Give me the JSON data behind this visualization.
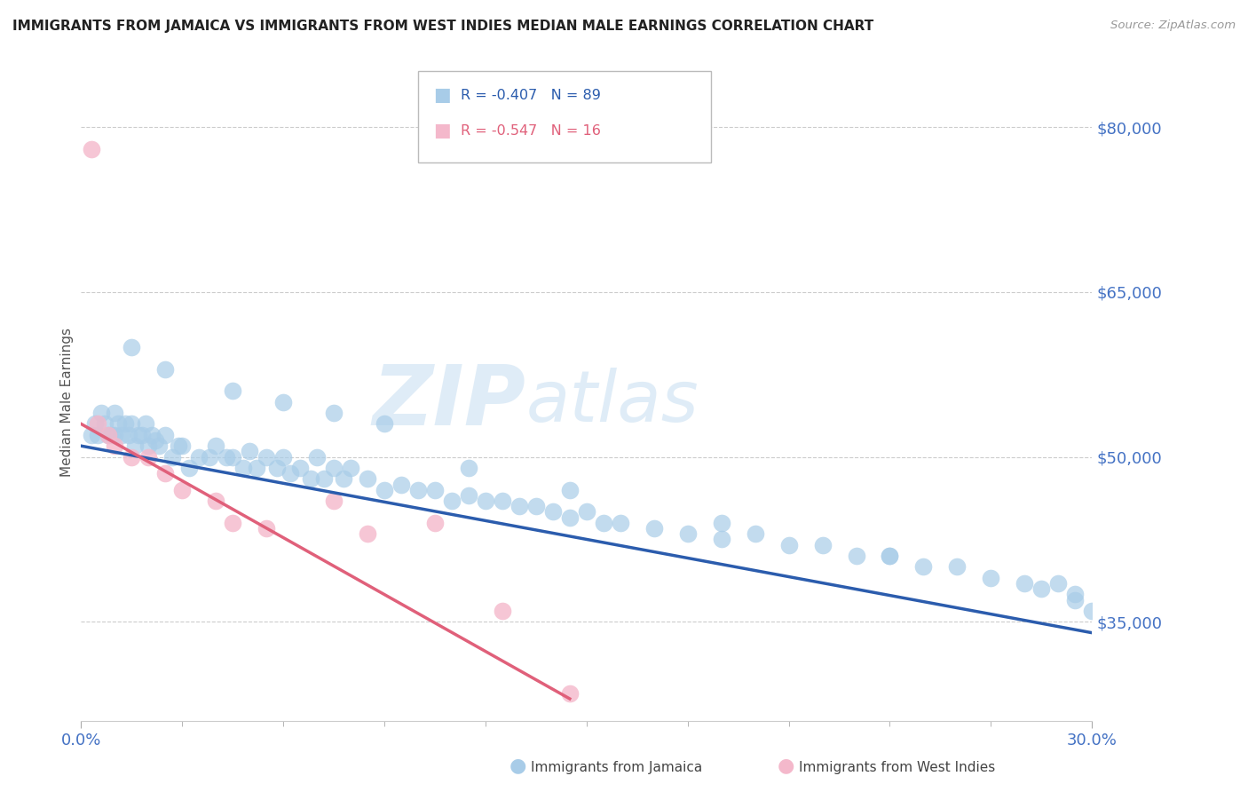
{
  "title": "IMMIGRANTS FROM JAMAICA VS IMMIGRANTS FROM WEST INDIES MEDIAN MALE EARNINGS CORRELATION CHART",
  "source": "Source: ZipAtlas.com",
  "ylabel": "Median Male Earnings",
  "yticks": [
    35000,
    50000,
    65000,
    80000
  ],
  "ytick_labels": [
    "$35,000",
    "$50,000",
    "$65,000",
    "$80,000"
  ],
  "xmin": 0.0,
  "xmax": 30.0,
  "ymin": 26000,
  "ymax": 84000,
  "blue_R": -0.407,
  "blue_N": 89,
  "pink_R": -0.547,
  "pink_N": 16,
  "legend1_label": "Immigrants from Jamaica",
  "legend2_label": "Immigrants from West Indies",
  "blue_color": "#a8cce8",
  "pink_color": "#f4b8cb",
  "blue_line_color": "#2b5cad",
  "pink_line_color": "#e0607a",
  "title_color": "#222222",
  "axis_label_color": "#4472c4",
  "watermark_zip": "ZIP",
  "watermark_atlas": "atlas",
  "blue_line_x0": 0.0,
  "blue_line_y0": 51000,
  "blue_line_x1": 30.0,
  "blue_line_y1": 34000,
  "pink_line_x0": 0.0,
  "pink_line_y0": 53000,
  "pink_line_x1": 14.5,
  "pink_line_y1": 28000,
  "blue_x": [
    0.3,
    0.4,
    0.5,
    0.6,
    0.7,
    0.8,
    0.9,
    1.0,
    1.0,
    1.1,
    1.2,
    1.3,
    1.4,
    1.5,
    1.6,
    1.7,
    1.8,
    1.9,
    2.0,
    2.1,
    2.2,
    2.3,
    2.5,
    2.7,
    2.9,
    3.0,
    3.2,
    3.5,
    3.8,
    4.0,
    4.3,
    4.5,
    4.8,
    5.0,
    5.2,
    5.5,
    5.8,
    6.0,
    6.2,
    6.5,
    6.8,
    7.0,
    7.2,
    7.5,
    7.8,
    8.0,
    8.5,
    9.0,
    9.5,
    10.0,
    10.5,
    11.0,
    11.5,
    12.0,
    12.5,
    13.0,
    13.5,
    14.0,
    14.5,
    15.0,
    15.5,
    16.0,
    17.0,
    18.0,
    19.0,
    20.0,
    21.0,
    22.0,
    23.0,
    24.0,
    25.0,
    26.0,
    27.0,
    28.0,
    28.5,
    29.0,
    29.5,
    30.0,
    1.5,
    2.5,
    4.5,
    6.0,
    7.5,
    9.0,
    11.5,
    14.5,
    19.0,
    24.0,
    29.5
  ],
  "blue_y": [
    52000,
    53000,
    52000,
    54000,
    53000,
    52000,
    52000,
    54000,
    52000,
    53000,
    52000,
    53000,
    52000,
    53000,
    51000,
    52000,
    52000,
    53000,
    51000,
    52000,
    51500,
    51000,
    52000,
    50000,
    51000,
    51000,
    49000,
    50000,
    50000,
    51000,
    50000,
    50000,
    49000,
    50500,
    49000,
    50000,
    49000,
    50000,
    48500,
    49000,
    48000,
    50000,
    48000,
    49000,
    48000,
    49000,
    48000,
    47000,
    47500,
    47000,
    47000,
    46000,
    46500,
    46000,
    46000,
    45500,
    45500,
    45000,
    44500,
    45000,
    44000,
    44000,
    43500,
    43000,
    42500,
    43000,
    42000,
    42000,
    41000,
    41000,
    40000,
    40000,
    39000,
    38500,
    38000,
    38500,
    37000,
    36000,
    60000,
    58000,
    56000,
    55000,
    54000,
    53000,
    49000,
    47000,
    44000,
    41000,
    37500
  ],
  "pink_x": [
    0.3,
    0.5,
    0.8,
    1.0,
    1.5,
    2.0,
    2.5,
    3.0,
    4.0,
    4.5,
    5.5,
    7.5,
    8.5,
    10.5,
    12.5,
    14.5
  ],
  "pink_y": [
    78000,
    53000,
    52000,
    51000,
    50000,
    50000,
    48500,
    47000,
    46000,
    44000,
    43500,
    46000,
    43000,
    44000,
    36000,
    28500
  ]
}
